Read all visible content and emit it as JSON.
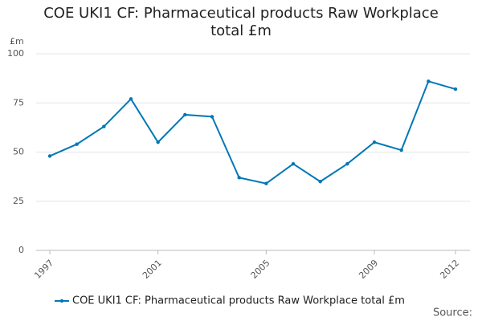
{
  "chart_data": {
    "type": "line",
    "title": "COE UKI1 CF: Pharmaceutical products Raw Workplace total £m",
    "y_label": "£m",
    "source": "Source:",
    "x": [
      1997,
      1998,
      1999,
      2000,
      2001,
      2002,
      2003,
      2004,
      2005,
      2006,
      2007,
      2008,
      2009,
      2010,
      2011,
      2012
    ],
    "series": [
      {
        "name": "COE UKI1 CF: Pharmaceutical products Raw Workplace total £m",
        "color": "#0077b6",
        "values": [
          48,
          54,
          63,
          77,
          55,
          69,
          68,
          37,
          34,
          44,
          35,
          44,
          55,
          51,
          86,
          82
        ]
      }
    ],
    "xlim": [
      1997,
      2012
    ],
    "xticks": [
      1997,
      2001,
      2005,
      2009,
      2012
    ],
    "ylim": [
      0,
      100
    ],
    "yticks": [
      0,
      25,
      50,
      75,
      100
    ],
    "grid": true,
    "legend": "bottom"
  }
}
